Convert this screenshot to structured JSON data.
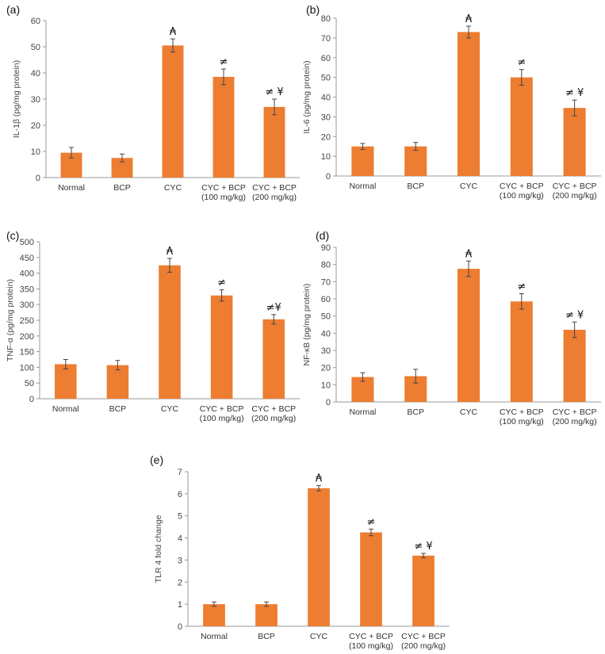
{
  "colors": {
    "bar": "#ED7D31",
    "axis": "#999999",
    "error": "#444444"
  },
  "chart_data": [
    {
      "type": "bar",
      "panel": "(a)",
      "ylabel": "IL-1β (pg/mg protein)",
      "ylim": [
        0,
        60
      ],
      "yticks": [
        0,
        10,
        20,
        30,
        40,
        50,
        60
      ],
      "categories": [
        [
          "Normal"
        ],
        [
          "BCP"
        ],
        [
          "CYC"
        ],
        [
          "CYC + BCP",
          "(100 mg/kg)"
        ],
        [
          "CYC + BCP",
          "(200 mg/kg)"
        ]
      ],
      "values": [
        9.5,
        7.5,
        50.5,
        38.5,
        27
      ],
      "errors": [
        2,
        1.5,
        2.5,
        3,
        3
      ],
      "markers": [
        "",
        "",
        "₳",
        "≠",
        "≠ ¥"
      ]
    },
    {
      "type": "bar",
      "panel": "(b)",
      "ylabel": "IL-6 (pg/mg protein)",
      "ylim": [
        0,
        80
      ],
      "yticks": [
        0,
        10,
        20,
        30,
        40,
        50,
        60,
        70,
        80
      ],
      "categories": [
        [
          "Normal"
        ],
        [
          "BCP"
        ],
        [
          "CYC"
        ],
        [
          "CYC + BCP",
          "(100 mg/kg)"
        ],
        [
          "CYC + BCP",
          "(200 mg/kg)"
        ]
      ],
      "values": [
        15,
        15,
        73,
        50,
        34.5
      ],
      "errors": [
        1.5,
        2,
        3,
        4,
        4
      ],
      "markers": [
        "",
        "",
        "₳",
        "≠",
        "≠ ¥"
      ]
    },
    {
      "type": "bar",
      "panel": "(c)",
      "ylabel": "TNF-α (pg/mg protein)",
      "ylim": [
        0,
        500
      ],
      "yticks": [
        0,
        50,
        100,
        150,
        200,
        250,
        300,
        350,
        400,
        450,
        500
      ],
      "categories": [
        [
          "Normal"
        ],
        [
          "BCP"
        ],
        [
          "CYC"
        ],
        [
          "CYC + BCP",
          "(100 mg/kg)"
        ],
        [
          "CYC + BCP",
          "(200 mg/kg)"
        ]
      ],
      "values": [
        110,
        107,
        425,
        329,
        253
      ],
      "errors": [
        15,
        15,
        22,
        18,
        15
      ],
      "markers": [
        "",
        "",
        "₳",
        "≠",
        "≠¥"
      ]
    },
    {
      "type": "bar",
      "panel": "(d)",
      "ylabel": "NF-κB (pg/mg protein)",
      "ylim": [
        0,
        90
      ],
      "yticks": [
        0,
        10,
        20,
        30,
        40,
        50,
        60,
        70,
        80,
        90
      ],
      "categories": [
        [
          "Normal"
        ],
        [
          "BCP"
        ],
        [
          "CYC"
        ],
        [
          "CYC + BCP",
          "(100 mg/kg)"
        ],
        [
          "CYC + BCP",
          "(200 mg/kg)"
        ]
      ],
      "values": [
        14.5,
        15,
        77.5,
        58.5,
        42
      ],
      "errors": [
        2.5,
        4,
        4.5,
        4.5,
        4.5
      ],
      "markers": [
        "",
        "",
        "₳",
        "≠",
        "≠ ¥"
      ]
    },
    {
      "type": "bar",
      "panel": "(e)",
      "ylabel": "TLR 4  fold change",
      "ylim": [
        0,
        7
      ],
      "yticks": [
        0,
        1,
        2,
        3,
        4,
        5,
        6,
        7
      ],
      "categories": [
        [
          "Normal"
        ],
        [
          "BCP"
        ],
        [
          "CYC"
        ],
        [
          "CYC + BCP",
          "(100 mg/kg)"
        ],
        [
          "CYC + BCP",
          "(200 mg/kg)"
        ]
      ],
      "values": [
        1,
        1,
        6.25,
        4.25,
        3.2
      ],
      "errors": [
        0.1,
        0.1,
        0.12,
        0.15,
        0.1
      ],
      "markers": [
        "",
        "",
        "₳",
        "≠",
        "≠ ¥"
      ]
    }
  ]
}
